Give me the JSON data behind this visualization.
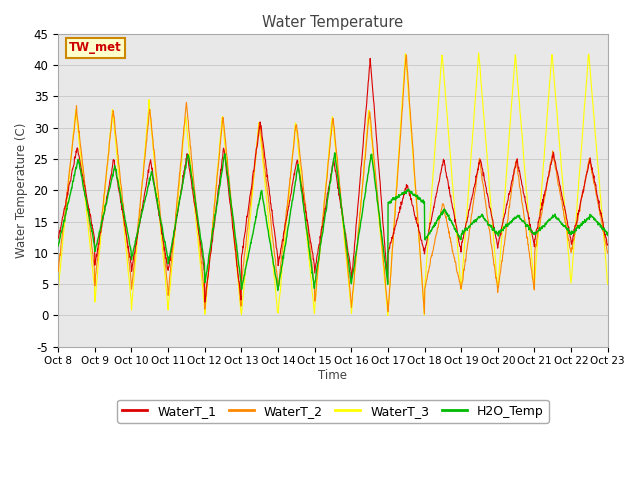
{
  "title": "Water Temperature",
  "ylabel": "Water Temperature (C)",
  "xlabel": "Time",
  "annotation": "TW_met",
  "ylim": [
    -5,
    45
  ],
  "xtick_labels": [
    "Oct 8",
    "Oct 9",
    "Oct 10",
    "Oct 11",
    "Oct 12",
    "Oct 13",
    "Oct 14",
    "Oct 15",
    "Oct 16",
    "Oct 17",
    "Oct 18",
    "Oct 19",
    "Oct 20",
    "Oct 21",
    "Oct 22",
    "Oct 23"
  ],
  "ytick_values": [
    -5,
    0,
    5,
    10,
    15,
    20,
    25,
    30,
    35,
    40,
    45
  ],
  "colors": {
    "WaterT_1": "#dd0000",
    "WaterT_2": "#ff8800",
    "WaterT_3": "#ffff00",
    "H2O_Temp": "#00bb00"
  },
  "bg_color": "#e8e8e8",
  "legend_labels": [
    "WaterT_1",
    "WaterT_2",
    "WaterT_3",
    "H2O_Temp"
  ],
  "n_days": 15
}
